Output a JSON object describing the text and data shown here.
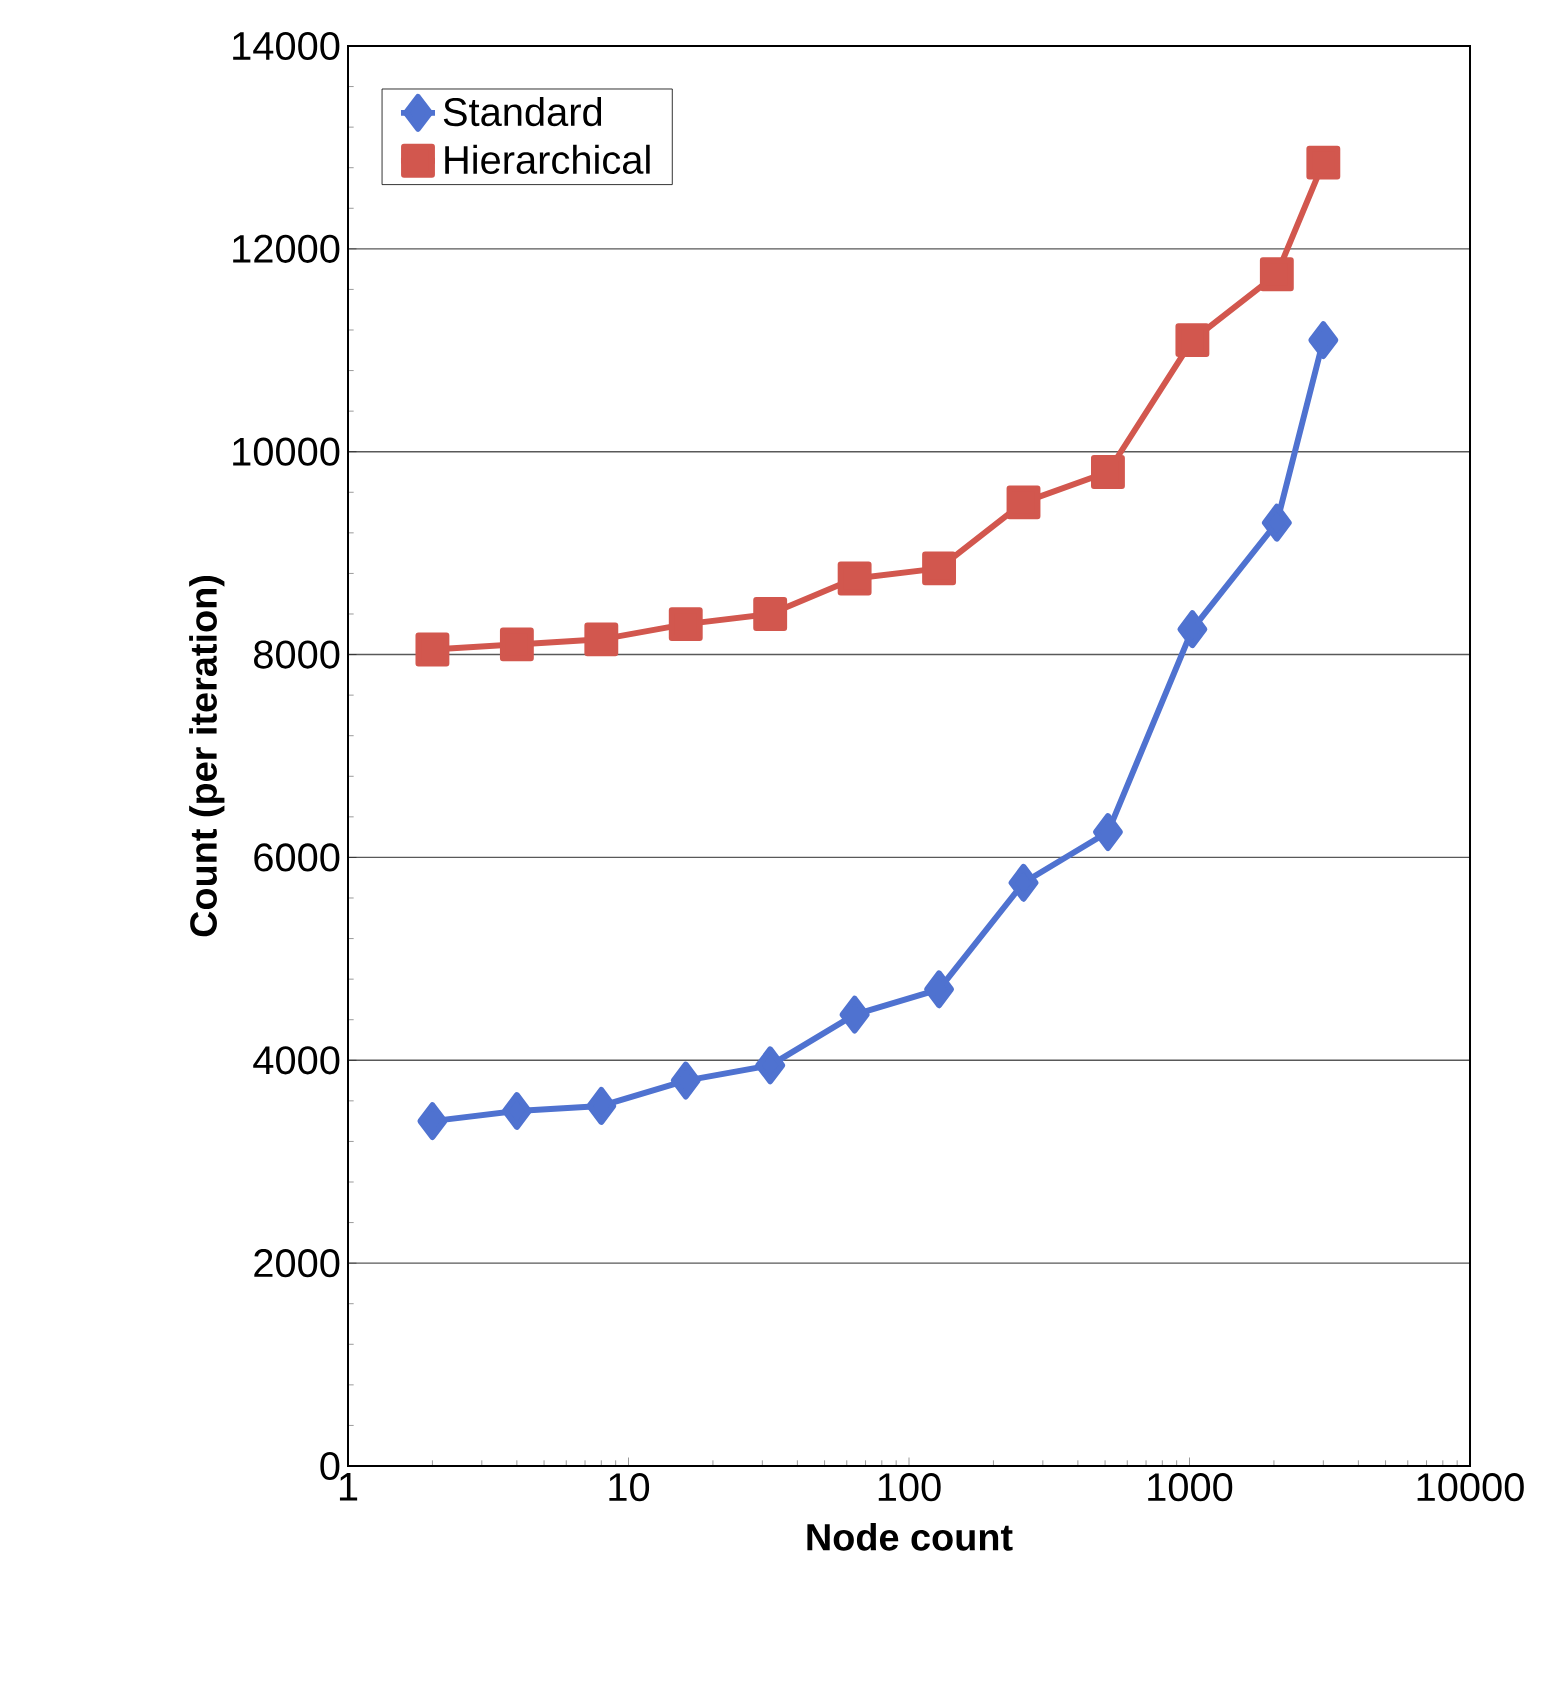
{
  "chart_data": {
    "type": "line",
    "xlabel": "Node count",
    "ylabel": "Count (per iteration)",
    "log": "x",
    "x": [
      2,
      4,
      8,
      16,
      32,
      64,
      128,
      256,
      512,
      1024,
      2048,
      3000
    ],
    "series": [
      {
        "name": "Standard",
        "color": "#4f72d0",
        "marker": "diamond",
        "values": [
          3400,
          3500,
          3550,
          3800,
          3950,
          4450,
          4700,
          5750,
          6250,
          8250,
          9300,
          11100
        ]
      },
      {
        "name": "Hierarchical",
        "color": "#d2574e",
        "marker": "square",
        "values": [
          8050,
          8100,
          8150,
          8300,
          8400,
          8750,
          8850,
          9500,
          9800,
          11100,
          11750,
          12850
        ]
      }
    ],
    "xlim": [
      1,
      10000
    ],
    "xticks": [
      1,
      10,
      100,
      1000,
      10000
    ],
    "ylim": [
      0,
      14000
    ],
    "yticks": [
      0,
      2000,
      4000,
      6000,
      8000,
      10000,
      12000,
      14000
    ],
    "grid": "y",
    "legend": "top left"
  }
}
